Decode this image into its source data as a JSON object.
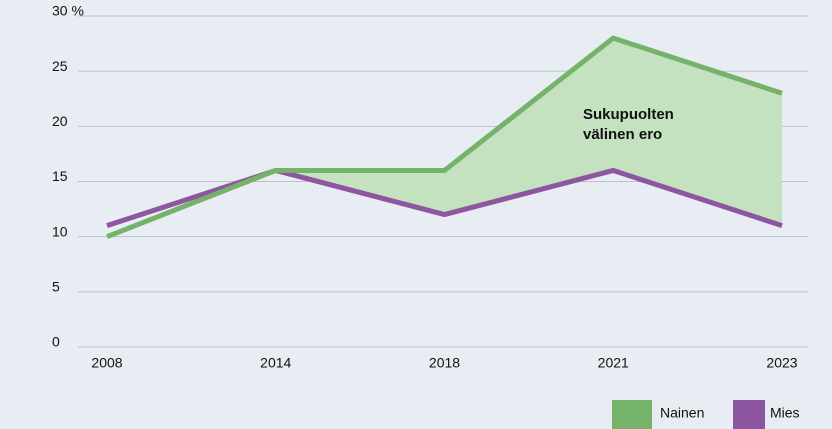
{
  "chart_data": {
    "type": "line",
    "categories": [
      "2008",
      "2014",
      "2018",
      "2021",
      "2023"
    ],
    "series": [
      {
        "name": "Nainen",
        "color": "#76b36a",
        "values": [
          10,
          16,
          16,
          28,
          23
        ]
      },
      {
        "name": "Mies",
        "color": "#8e55a0",
        "values": [
          11,
          16,
          12,
          16,
          11
        ]
      }
    ],
    "fill_color": "#c4e2bf",
    "annotation": [
      "Sukupuolten",
      "välinen ero"
    ],
    "ylim": [
      0,
      30
    ],
    "yticks": [
      0,
      5,
      10,
      15,
      20,
      25,
      {
        "value": 30,
        "label": "30 %"
      }
    ],
    "grid": true,
    "legend": "bottom-right"
  }
}
